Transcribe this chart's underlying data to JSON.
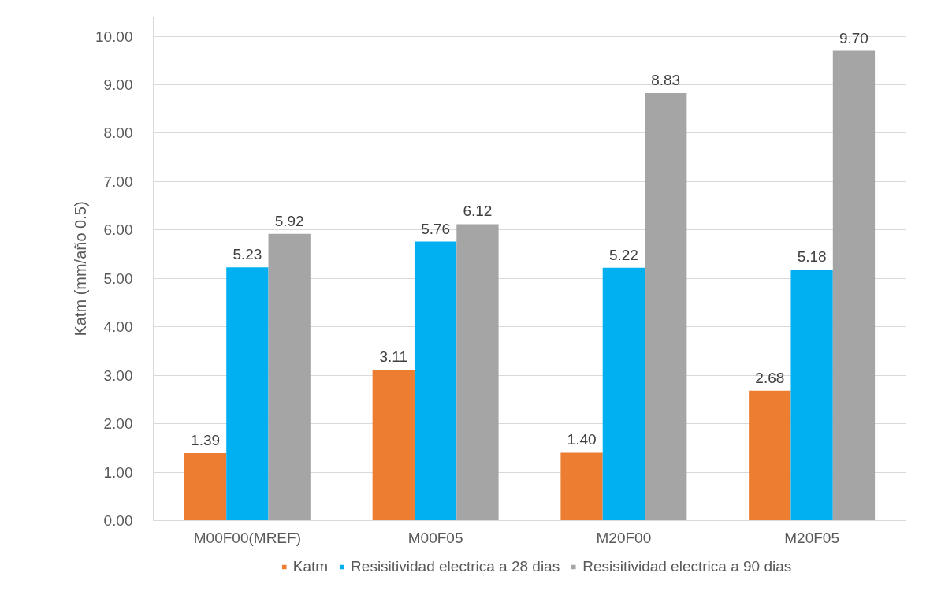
{
  "chart_data": {
    "type": "bar",
    "ylabel": "Katm (mm/año 0.5)",
    "categories": [
      "M00F00(MREF)",
      "M00F05",
      "M20F00",
      "M20F05"
    ],
    "series": [
      {
        "name": "Katm",
        "color": "#ed7d31",
        "values": [
          1.39,
          3.11,
          1.4,
          2.68
        ],
        "value_labels": [
          "1.39",
          "3.11",
          "1.40",
          "2.68"
        ]
      },
      {
        "name": "Resisitividad electrica a 28 dias",
        "color": "#00b0f0",
        "values": [
          5.23,
          5.76,
          5.22,
          5.18
        ],
        "value_labels": [
          "5.23",
          "5.76",
          "5.22",
          "5.18"
        ]
      },
      {
        "name": "Resisitividad electrica a 90 dias",
        "color": "#a5a5a5",
        "values": [
          5.92,
          6.12,
          8.83,
          9.7
        ],
        "value_labels": [
          "5.92",
          "6.12",
          "8.83",
          "9.70"
        ]
      }
    ],
    "ylim": [
      0,
      10.4
    ],
    "yticks": [
      {
        "value": 0,
        "label": "0.00"
      },
      {
        "value": 1,
        "label": "1.00"
      },
      {
        "value": 2,
        "label": "2.00"
      },
      {
        "value": 3,
        "label": "3.00"
      },
      {
        "value": 4,
        "label": "4.00"
      },
      {
        "value": 5,
        "label": "5.00"
      },
      {
        "value": 6,
        "label": "6.00"
      },
      {
        "value": 7,
        "label": "7.00"
      },
      {
        "value": 8,
        "label": "8.00"
      },
      {
        "value": 9,
        "label": "9.00"
      },
      {
        "value": 10,
        "label": "10.00"
      }
    ],
    "grid": "y",
    "legend": "bottom"
  }
}
